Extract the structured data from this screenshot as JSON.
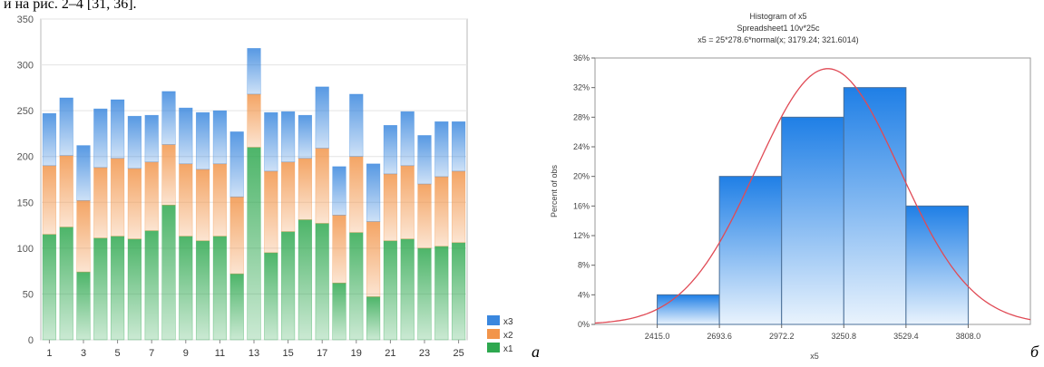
{
  "header_fragment": "и на рис. 2–4 [31, 36].",
  "panel_labels": {
    "left": "а",
    "right": "б"
  },
  "colors": {
    "x1": "#2ea84f",
    "x2": "#f2954a",
    "x3": "#3a87de",
    "hist_fill_top": "#1f7fe6",
    "hist_fill_bottom": "#e9f3fd",
    "curve": "#e04a55"
  },
  "chart_data": [
    {
      "type": "bar",
      "stacked": true,
      "title": "",
      "xlabel": "",
      "ylabel": "",
      "categories": [
        1,
        2,
        3,
        4,
        5,
        6,
        7,
        8,
        9,
        10,
        11,
        12,
        13,
        14,
        15,
        16,
        17,
        18,
        19,
        20,
        21,
        22,
        23,
        24,
        25
      ],
      "x_tick_labels": [
        "1",
        "3",
        "5",
        "7",
        "9",
        "11",
        "13",
        "15",
        "17",
        "19",
        "21",
        "23",
        "25"
      ],
      "y_ticks": [
        0,
        50,
        100,
        150,
        200,
        250,
        300,
        350
      ],
      "ylim": [
        0,
        350
      ],
      "grid": true,
      "legend_position": "bottom-right",
      "series": [
        {
          "name": "x1",
          "values": [
            115,
            123,
            74,
            111,
            113,
            110,
            119,
            147,
            113,
            108,
            113,
            72,
            210,
            95,
            118,
            131,
            127,
            62,
            117,
            47,
            108,
            110,
            100,
            102,
            106
          ]
        },
        {
          "name": "x2",
          "values": [
            75,
            78,
            78,
            77,
            85,
            77,
            75,
            66,
            79,
            78,
            79,
            84,
            58,
            89,
            76,
            67,
            82,
            74,
            83,
            82,
            73,
            80,
            70,
            76,
            78
          ]
        },
        {
          "name": "x3",
          "values": [
            57,
            63,
            60,
            64,
            64,
            57,
            51,
            58,
            61,
            62,
            58,
            71,
            50,
            64,
            55,
            47,
            67,
            53,
            68,
            63,
            53,
            59,
            53,
            60,
            54
          ]
        }
      ]
    },
    {
      "type": "bar",
      "histogram": true,
      "title": "Histogram of x5",
      "subtitle": "Spreadsheet1 10v*25c",
      "formula": "x5 = 25*278.6*normal(x; 3179.24; 321.6014)",
      "xlabel": "x5",
      "ylabel": "Percent of obs",
      "bin_edges": [
        2415.0,
        2693.6,
        2972.2,
        3250.8,
        3529.4,
        3808.0
      ],
      "values_percent": [
        4,
        20,
        28,
        32,
        16
      ],
      "x_tick_labels": [
        "2415.0",
        "2693.6",
        "2972.2",
        "3250.8",
        "3529.4",
        "3808.0"
      ],
      "y_tick_labels": [
        "0%",
        "4%",
        "8%",
        "12%",
        "16%",
        "20%",
        "24%",
        "28%",
        "32%",
        "36%"
      ],
      "xlim": [
        2136.4,
        4086.6
      ],
      "ylim": [
        0,
        36
      ],
      "normal_fit": {
        "mean": 3179.24,
        "sd": 321.6014,
        "n": 25,
        "bin_width": 278.6
      }
    }
  ]
}
